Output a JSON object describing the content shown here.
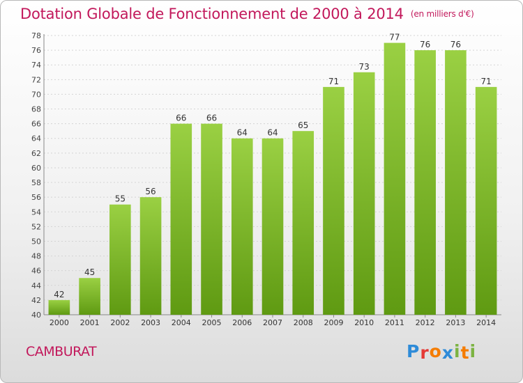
{
  "chart_data": {
    "type": "bar",
    "title": "Dotation Globale de Fonctionnement de 2000 à 2014",
    "subtitle": "(en milliers d'€)",
    "categories": [
      "2000",
      "2001",
      "2002",
      "2003",
      "2004",
      "2005",
      "2006",
      "2007",
      "2008",
      "2009",
      "2010",
      "2011",
      "2012",
      "2013",
      "2014"
    ],
    "values": [
      42,
      45,
      55,
      56,
      66,
      66,
      64,
      64,
      65,
      71,
      73,
      77,
      76,
      76,
      71
    ],
    "ylim": [
      40,
      78
    ],
    "ytick_step": 2,
    "grid": true,
    "bar_color": "#7cbb2a"
  },
  "commune": "CAMBURAT",
  "logo": [
    "P",
    "r",
    "o",
    "x",
    "i",
    "t",
    "i"
  ],
  "colors": {
    "accent": "#c2185b",
    "logo": [
      "#2e8bd8",
      "#e53935",
      "#f57c00",
      "#2e8bd8",
      "#7cb342",
      "#f57c00",
      "#7cb342"
    ]
  }
}
